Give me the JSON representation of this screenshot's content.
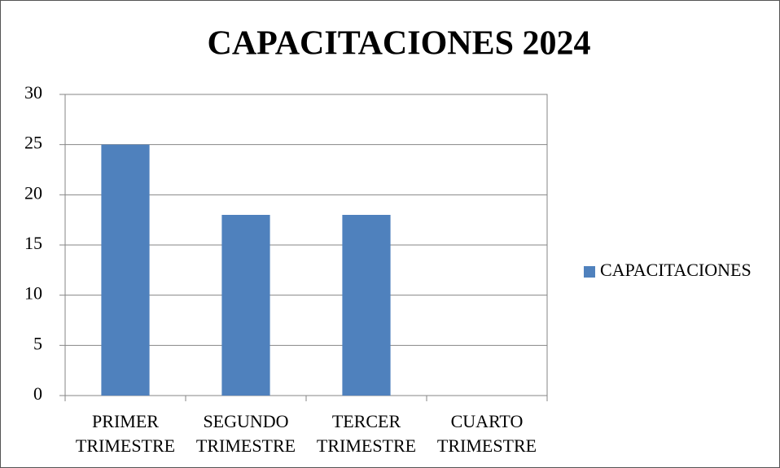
{
  "chart_data": {
    "type": "bar",
    "title": "CAPACITACIONES 2024",
    "categories": [
      "PRIMER TRIMESTRE",
      "SEGUNDO TRIMESTRE",
      "TERCER TRIMESTRE",
      "CUARTO TRIMESTRE"
    ],
    "series": [
      {
        "name": "CAPACITACIONES",
        "color": "#4f81bd",
        "values": [
          25,
          18,
          18,
          null
        ]
      }
    ],
    "ylim": [
      0,
      30
    ],
    "yticks": [
      0,
      5,
      10,
      15,
      20,
      25,
      30
    ],
    "grid": true,
    "legend": "right"
  }
}
